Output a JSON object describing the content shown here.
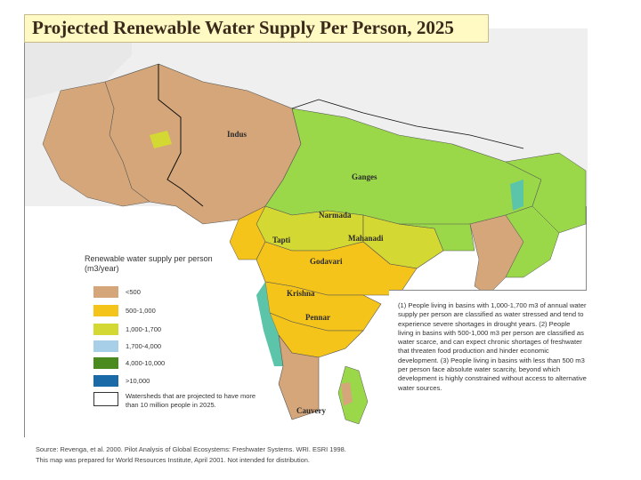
{
  "title": "Projected Renewable Water Supply Per Person, 2025",
  "basin_labels": {
    "indus": "Indus",
    "ganges": "Ganges",
    "narmada": "Narmada",
    "tapti": "Tapti",
    "mahanadi": "Mahanadi",
    "godavari": "Godavari",
    "krishna": "Krishna",
    "pennar": "Pennar",
    "cauvery": "Cauvery"
  },
  "legend": {
    "title": "Renewable water supply per person (m3/year)",
    "classes": [
      {
        "label": "<500",
        "color": "#d4a67a"
      },
      {
        "label": "500-1,000",
        "color": "#f5c41a"
      },
      {
        "label": "1,000-1,700",
        "color": "#d4d832"
      },
      {
        "label": "1,700-4,000",
        "color": "#a7cfe8"
      },
      {
        "label": "4,000-10,000",
        "color": "#4a8a1e"
      },
      {
        "label": ">10,000",
        "color": "#1a6aa8"
      }
    ],
    "watershed_note": "Watersheds that are projected to have more than 10 million people in 2025."
  },
  "colors": {
    "green_high": "#9ad84a",
    "teal": "#5cc4a8",
    "land_outside": "#efefef",
    "sea": "#ffffff"
  },
  "notes": "(1) People living in basins with 1,000-1,700 m3 of annual water supply per person are classified as water stressed and tend to experience severe shortages in drought years. (2) People living in basins with 500-1,000 m3 per person are classified as water scarce, and can expect chronic shortages of freshwater that threaten food production and hinder economic development. (3) People living in basins with less than 500 m3 per person face absolute water scarcity, beyond which development is highly constrained without access to alternative water sources.",
  "source_line1": "Source: Revenga, et al. 2000. Pilot Analysis of Global Ecosystems: Freshwater Systems. WRI. ESRI 1998.",
  "source_line2": "This map was prepared for World Resources Institute, April 2001. Not intended for distribution."
}
